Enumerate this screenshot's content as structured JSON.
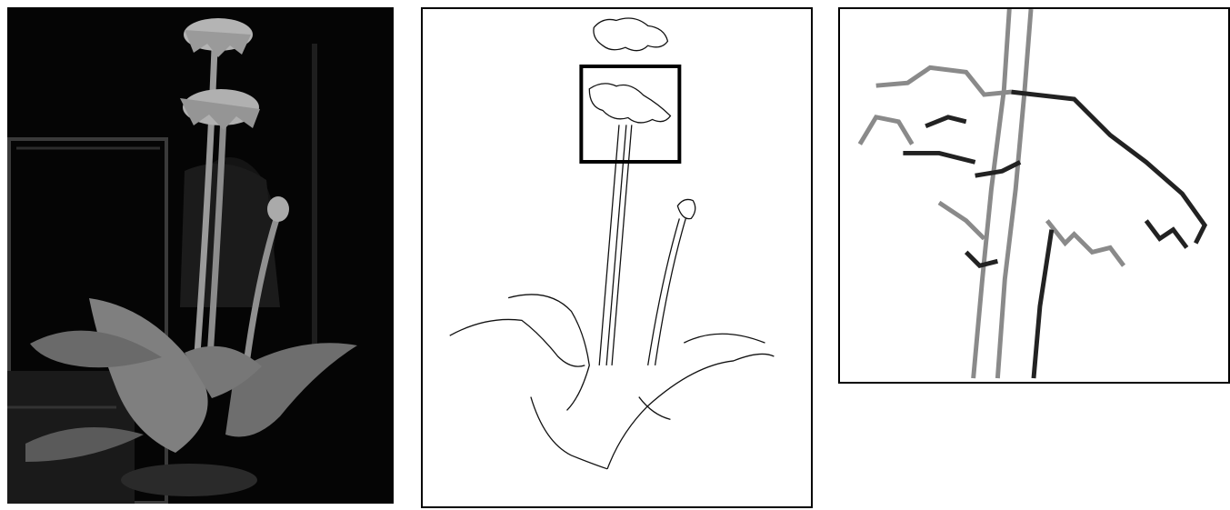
{
  "panels": [
    {
      "id": "photo",
      "kind": "grayscale-photograph",
      "subject": "gerbera-plant"
    },
    {
      "id": "edges",
      "kind": "edge-map",
      "subject": "gerbera-plant",
      "highlight": "upper-flower"
    },
    {
      "id": "zoom",
      "kind": "edge-map-magnified",
      "subject": "upper-flower"
    }
  ],
  "colors": {
    "background": "#ffffff",
    "photo_background": "#050505",
    "border": "#000000",
    "edge_dark": "#111111",
    "edge_gray": "#8a8a8a"
  }
}
